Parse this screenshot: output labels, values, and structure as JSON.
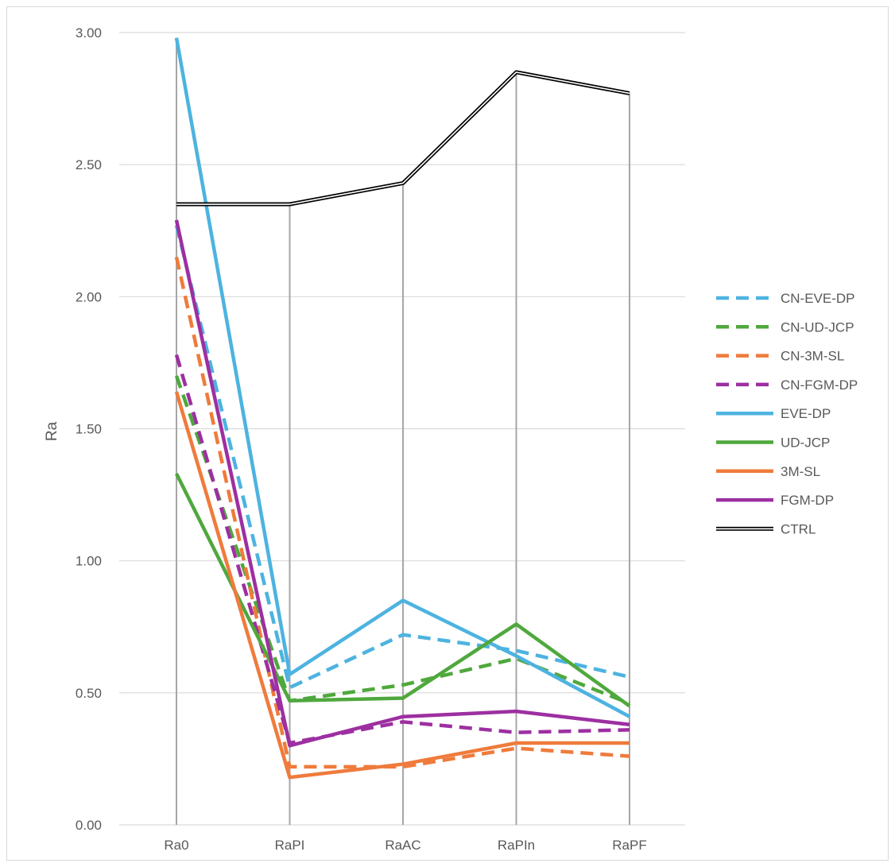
{
  "chart_data": {
    "type": "line",
    "title": "",
    "xlabel": "",
    "ylabel": "Ra",
    "categories": [
      "Ra0",
      "RaPI",
      "RaAC",
      "RaPIn",
      "RaPF"
    ],
    "ylim": [
      0,
      3
    ],
    "yticks": [
      0,
      0.5,
      1,
      1.5,
      2,
      2.5,
      3
    ],
    "ytick_labels": [
      "0.00",
      "0.50",
      "1.00",
      "1.50",
      "2.00",
      "2.50",
      "3.00"
    ],
    "grid": "horizontal",
    "drop_lines": true,
    "legend_position": "right",
    "series": [
      {
        "name": "CN-EVE-DP",
        "color": "#4db3e0",
        "style": "dashed",
        "values": [
          2.27,
          0.52,
          0.72,
          0.66,
          0.56
        ]
      },
      {
        "name": "CN-UD-JCP",
        "color": "#4fa83d",
        "style": "dashed",
        "values": [
          1.7,
          0.47,
          0.53,
          0.63,
          0.46
        ]
      },
      {
        "name": "CN-3M-SL",
        "color": "#ef7b3c",
        "style": "dashed",
        "values": [
          2.15,
          0.22,
          0.22,
          0.29,
          0.26
        ]
      },
      {
        "name": "CN-FGM-DP",
        "color": "#9d2fa1",
        "style": "dashed",
        "values": [
          1.78,
          0.31,
          0.39,
          0.35,
          0.36
        ]
      },
      {
        "name": "EVE-DP",
        "color": "#4db3e0",
        "style": "solid",
        "values": [
          2.98,
          0.57,
          0.85,
          0.64,
          0.41
        ]
      },
      {
        "name": "UD-JCP",
        "color": "#4fa83d",
        "style": "solid",
        "values": [
          1.33,
          0.47,
          0.48,
          0.76,
          0.45
        ]
      },
      {
        "name": "3M-SL",
        "color": "#ef7b3c",
        "style": "solid",
        "values": [
          1.64,
          0.18,
          0.23,
          0.31,
          0.31
        ]
      },
      {
        "name": "FGM-DP",
        "color": "#9d2fa1",
        "style": "solid",
        "values": [
          2.29,
          0.3,
          0.41,
          0.43,
          0.38
        ]
      },
      {
        "name": "CTRL",
        "color": "#000000",
        "style": "double",
        "values": [
          2.35,
          2.35,
          2.43,
          2.85,
          2.77
        ]
      }
    ]
  }
}
